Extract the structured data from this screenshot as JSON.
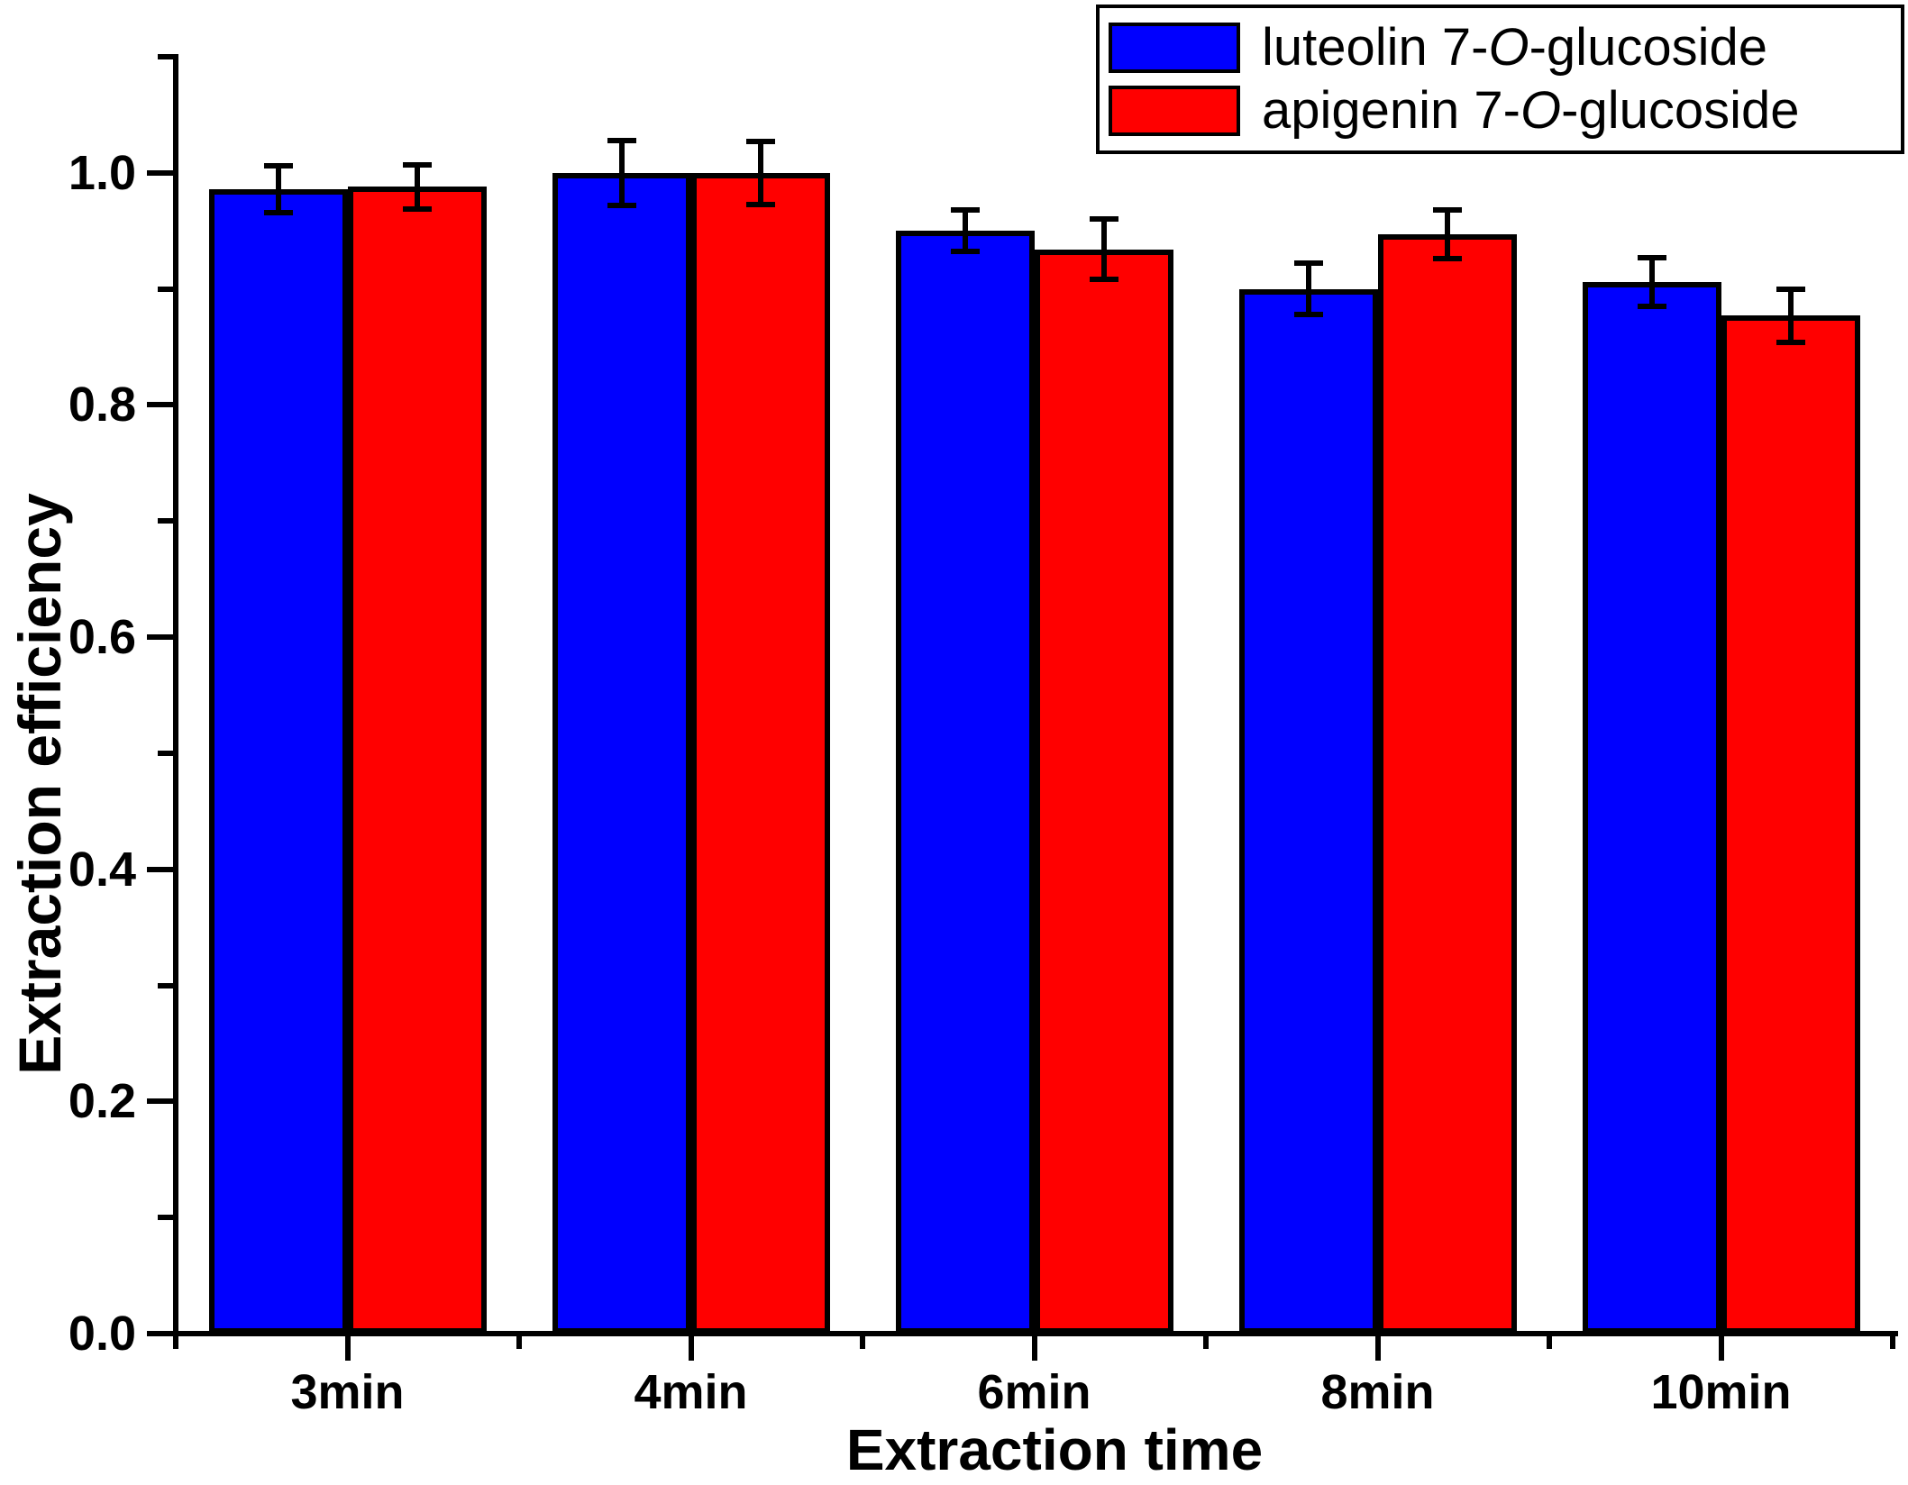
{
  "chart_data": {
    "type": "bar",
    "title": "",
    "xlabel": "Extraction time",
    "ylabel": "Extraction efficiency",
    "categories": [
      "3min",
      "4min",
      "6min",
      "8min",
      "10min"
    ],
    "series": [
      {
        "name": "luteolin 7-O-glucoside",
        "color": "#0000ff",
        "values": [
          0.986,
          1.0,
          0.95,
          0.9,
          0.906
        ],
        "errors": [
          0.02,
          0.028,
          0.018,
          0.022,
          0.021
        ]
      },
      {
        "name": "apigenin 7-O-glucoside",
        "color": "#ff0000",
        "values": [
          0.988,
          1.0,
          0.934,
          0.947,
          0.877
        ],
        "errors": [
          0.019,
          0.027,
          0.026,
          0.021,
          0.023
        ]
      }
    ],
    "ylim": [
      0,
      1.1
    ],
    "yticks": [
      0.0,
      0.2,
      0.4,
      0.6,
      0.8,
      1.0
    ],
    "ytick_labels": [
      "0.0",
      "0.2",
      "0.4",
      "0.6",
      "0.8",
      "1.0"
    ],
    "yticks_minor": [
      0.1,
      0.3,
      0.5,
      0.7,
      0.9,
      1.1
    ],
    "grid": false,
    "legend_position": "top-right",
    "bar_edge_color": "#000000",
    "error_bar_color": "#000000",
    "axis_color": "#000000"
  },
  "legend": {
    "items": [
      {
        "label": "luteolin 7-O-glucoside",
        "prefix": "luteolin 7-",
        "italic_part": "O",
        "suffix": "-glucoside",
        "color": "#0000ff"
      },
      {
        "label": "apigenin 7-O-glucoside",
        "prefix": "apigenin 7-",
        "italic_part": "O",
        "suffix": "-glucoside",
        "color": "#ff0000"
      }
    ]
  }
}
